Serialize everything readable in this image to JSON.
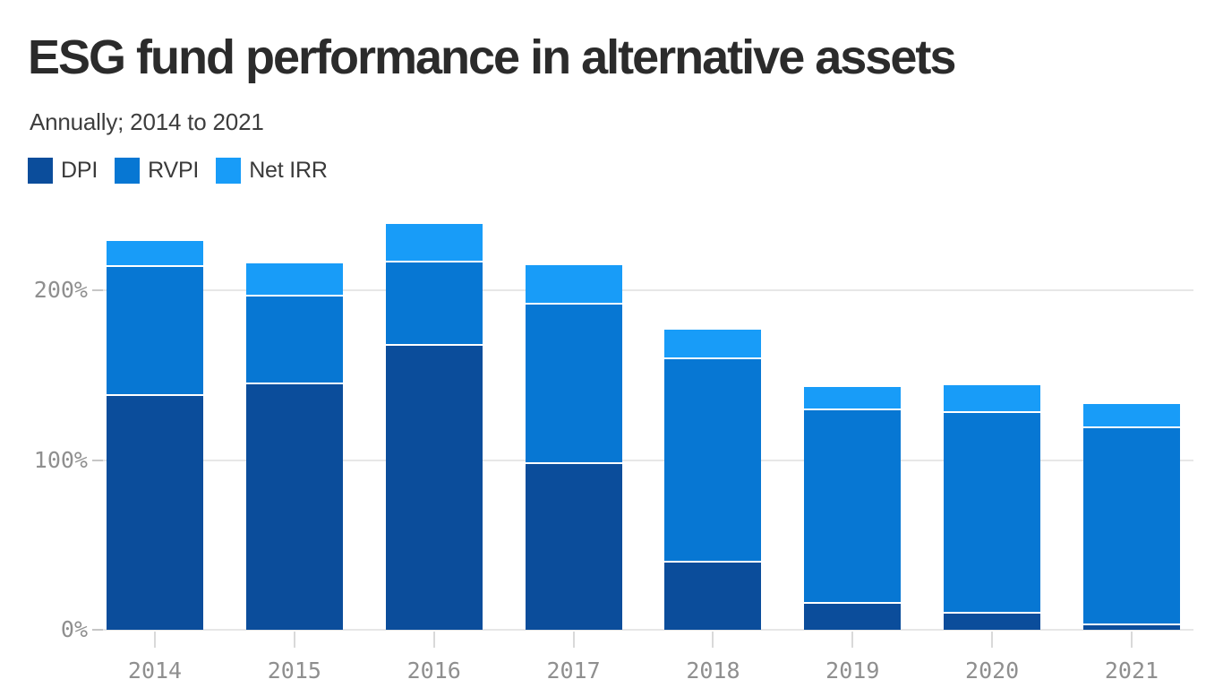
{
  "header": {
    "title": "ESG fund performance in alternative assets",
    "subtitle": "Annually; 2014 to 2021"
  },
  "legend": {
    "items": [
      {
        "label": "DPI",
        "color": "#0b4d9b"
      },
      {
        "label": "RVPI",
        "color": "#0777d3"
      },
      {
        "label": "Net IRR",
        "color": "#189cf8"
      }
    ]
  },
  "axes": {
    "y_ticks": [
      {
        "label": "0%",
        "value": 0
      },
      {
        "label": "100%",
        "value": 100
      },
      {
        "label": "200%",
        "value": 200
      }
    ],
    "x_ticks": [
      "2014",
      "2015",
      "2016",
      "2017",
      "2018",
      "2019",
      "2020",
      "2021"
    ]
  },
  "chart_data": {
    "type": "bar",
    "stacked": true,
    "title": "ESG fund performance in alternative assets",
    "subtitle": "Annually; 2014 to 2021",
    "xlabel": "",
    "ylabel": "",
    "unit": "%",
    "categories": [
      "2014",
      "2015",
      "2016",
      "2017",
      "2018",
      "2019",
      "2020",
      "2021"
    ],
    "series": [
      {
        "name": "DPI",
        "color": "#0b4d9b",
        "values": [
          138,
          145,
          168,
          98,
          40,
          16,
          10,
          3
        ]
      },
      {
        "name": "RVPI",
        "color": "#0777d3",
        "values": [
          76,
          52,
          49,
          94,
          120,
          114,
          118,
          116
        ]
      },
      {
        "name": "Net IRR",
        "color": "#189cf8",
        "values": [
          15,
          19,
          22,
          23,
          17,
          13,
          16,
          14
        ]
      }
    ],
    "totals": [
      229,
      216,
      239,
      215,
      177,
      143,
      144,
      133
    ],
    "ylim": [
      0,
      245
    ],
    "y_tick_labels": [
      "0%",
      "100%",
      "200%"
    ],
    "grid": "horizontal",
    "legend_position": "top-left"
  },
  "colors": {
    "background": "#ffffff",
    "title_text": "#2b2b2b",
    "subtitle_text": "#3d3d3d",
    "axis_text": "#8f8f8f",
    "gridline": "#e7e7e7",
    "tick_dash": "#c6c6c6",
    "x_tick": "#d9d9d9",
    "separator": "#ffffff"
  }
}
